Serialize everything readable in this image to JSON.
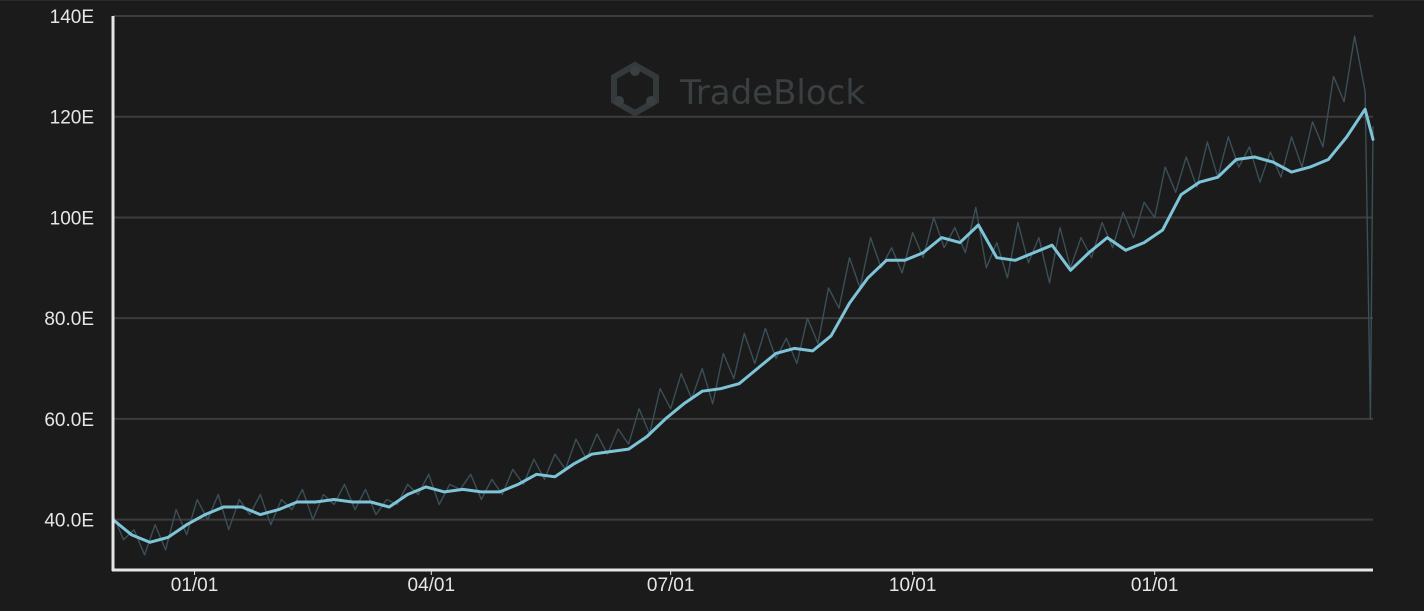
{
  "watermark": {
    "text": "TradeBlock",
    "icon": "hexagon-nodes-icon"
  },
  "colors": {
    "background": "#1b1b1b",
    "grid": "#3c3c3c",
    "axis": "#e6e6e6",
    "tick_text": "#e6e6e6",
    "smooth_line": "#7ec4d8",
    "raw_line": "#3a4f57",
    "watermark": "#3a3f42"
  },
  "chart_data": {
    "type": "line",
    "title": "",
    "xlabel": "",
    "ylabel": "",
    "x_range": [
      "2020-12-01",
      "2022-03-25"
    ],
    "ylim": [
      30,
      140
    ],
    "grid": "horizontal",
    "yticks": [
      {
        "value": 40,
        "label": "40.0E"
      },
      {
        "value": 60,
        "label": "60.0E"
      },
      {
        "value": 80,
        "label": "80.0E"
      },
      {
        "value": 100,
        "label": "100E"
      },
      {
        "value": 120,
        "label": "120E"
      },
      {
        "value": 140,
        "label": "140E"
      }
    ],
    "xticks": [
      {
        "date": "2021-01-01",
        "label": "01/01"
      },
      {
        "date": "2021-04-01",
        "label": "04/01"
      },
      {
        "date": "2021-07-01",
        "label": "07/01"
      },
      {
        "date": "2021-10-01",
        "label": "10/01"
      },
      {
        "date": "2022-01-01",
        "label": "01/01"
      }
    ],
    "series": [
      {
        "style": "smoothed",
        "x": [
          "2020-12-01",
          "2020-12-08",
          "2020-12-15",
          "2020-12-22",
          "2020-12-29",
          "2021-01-05",
          "2021-01-12",
          "2021-01-19",
          "2021-01-26",
          "2021-02-02",
          "2021-02-09",
          "2021-02-16",
          "2021-02-23",
          "2021-03-02",
          "2021-03-09",
          "2021-03-16",
          "2021-03-23",
          "2021-03-30",
          "2021-04-06",
          "2021-04-13",
          "2021-04-20",
          "2021-04-27",
          "2021-05-04",
          "2021-05-11",
          "2021-05-18",
          "2021-05-25",
          "2021-06-01",
          "2021-06-08",
          "2021-06-15",
          "2021-06-22",
          "2021-06-29",
          "2021-07-06",
          "2021-07-13",
          "2021-07-20",
          "2021-07-27",
          "2021-08-03",
          "2021-08-10",
          "2021-08-17",
          "2021-08-24",
          "2021-08-31",
          "2021-09-07",
          "2021-09-14",
          "2021-09-21",
          "2021-09-28",
          "2021-10-05",
          "2021-10-12",
          "2021-10-19",
          "2021-10-26",
          "2021-11-02",
          "2021-11-09",
          "2021-11-16",
          "2021-11-23",
          "2021-11-30",
          "2021-12-07",
          "2021-12-14",
          "2021-12-21",
          "2021-12-28",
          "2022-01-04",
          "2022-01-11",
          "2022-01-18",
          "2022-01-25",
          "2022-02-01",
          "2022-02-08",
          "2022-02-15",
          "2022-02-22",
          "2022-03-01",
          "2022-03-08",
          "2022-03-15",
          "2022-03-22",
          "2022-03-25"
        ],
        "values": [
          40,
          37,
          35.5,
          36.5,
          39,
          41,
          42.5,
          42.5,
          41,
          42,
          43.5,
          43.5,
          44,
          43.5,
          43.5,
          42.5,
          45,
          46.5,
          45.5,
          46,
          45.5,
          45.5,
          47,
          49,
          48.5,
          51,
          53,
          53.5,
          54,
          56.5,
          60,
          63,
          65.5,
          66,
          67,
          70,
          73,
          74,
          73.5,
          76.5,
          83,
          88,
          91.5,
          91.5,
          93,
          96,
          95,
          98.5,
          92,
          91.5,
          93,
          94.5,
          89.5,
          93,
          96,
          93.5,
          95,
          97.5,
          104.5,
          107,
          108,
          111.5,
          112,
          111,
          109,
          110,
          111.5,
          116,
          121.5,
          115.5
        ]
      },
      {
        "style": "raw",
        "x": [
          "2020-12-01",
          "2020-12-05",
          "2020-12-09",
          "2020-12-13",
          "2020-12-17",
          "2020-12-21",
          "2020-12-25",
          "2020-12-29",
          "2021-01-02",
          "2021-01-06",
          "2021-01-10",
          "2021-01-14",
          "2021-01-18",
          "2021-01-22",
          "2021-01-26",
          "2021-01-30",
          "2021-02-03",
          "2021-02-07",
          "2021-02-11",
          "2021-02-15",
          "2021-02-19",
          "2021-02-23",
          "2021-02-27",
          "2021-03-03",
          "2021-03-07",
          "2021-03-11",
          "2021-03-15",
          "2021-03-19",
          "2021-03-23",
          "2021-03-27",
          "2021-03-31",
          "2021-04-04",
          "2021-04-08",
          "2021-04-12",
          "2021-04-16",
          "2021-04-20",
          "2021-04-24",
          "2021-04-28",
          "2021-05-02",
          "2021-05-06",
          "2021-05-10",
          "2021-05-14",
          "2021-05-18",
          "2021-05-22",
          "2021-05-26",
          "2021-05-30",
          "2021-06-03",
          "2021-06-07",
          "2021-06-11",
          "2021-06-15",
          "2021-06-19",
          "2021-06-23",
          "2021-06-27",
          "2021-07-01",
          "2021-07-05",
          "2021-07-09",
          "2021-07-13",
          "2021-07-17",
          "2021-07-21",
          "2021-07-25",
          "2021-07-29",
          "2021-08-02",
          "2021-08-06",
          "2021-08-10",
          "2021-08-14",
          "2021-08-18",
          "2021-08-22",
          "2021-08-26",
          "2021-08-30",
          "2021-09-03",
          "2021-09-07",
          "2021-09-11",
          "2021-09-15",
          "2021-09-19",
          "2021-09-23",
          "2021-09-27",
          "2021-10-01",
          "2021-10-05",
          "2021-10-09",
          "2021-10-13",
          "2021-10-17",
          "2021-10-21",
          "2021-10-25",
          "2021-10-29",
          "2021-11-02",
          "2021-11-06",
          "2021-11-10",
          "2021-11-14",
          "2021-11-18",
          "2021-11-22",
          "2021-11-26",
          "2021-11-30",
          "2021-12-04",
          "2021-12-08",
          "2021-12-12",
          "2021-12-16",
          "2021-12-20",
          "2021-12-24",
          "2021-12-28",
          "2022-01-01",
          "2022-01-05",
          "2022-01-09",
          "2022-01-13",
          "2022-01-17",
          "2022-01-21",
          "2022-01-25",
          "2022-01-29",
          "2022-02-02",
          "2022-02-06",
          "2022-02-10",
          "2022-02-14",
          "2022-02-18",
          "2022-02-22",
          "2022-02-26",
          "2022-03-02",
          "2022-03-06",
          "2022-03-10",
          "2022-03-14",
          "2022-03-18",
          "2022-03-22",
          "2022-03-24",
          "2022-03-25"
        ],
        "values": [
          41,
          36,
          38,
          33,
          39,
          34,
          42,
          37,
          44,
          40,
          45,
          38,
          44,
          41,
          45,
          39,
          44,
          42,
          46,
          40,
          45,
          43,
          47,
          42,
          46,
          41,
          44,
          43,
          47,
          45,
          49,
          43,
          47,
          46,
          49,
          44,
          48,
          45,
          50,
          47,
          52,
          48,
          53,
          50,
          56,
          52,
          57,
          53,
          58,
          55,
          62,
          57,
          66,
          62,
          69,
          64,
          70,
          63,
          73,
          68,
          77,
          71,
          78,
          72,
          76,
          71,
          80,
          75,
          86,
          82,
          92,
          86,
          96,
          90,
          94,
          89,
          97,
          92,
          100,
          94,
          98,
          93,
          102,
          90,
          95,
          88,
          99,
          91,
          96,
          87,
          98,
          90,
          96,
          92,
          99,
          94,
          101,
          96,
          103,
          100,
          110,
          105,
          112,
          106,
          115,
          108,
          116,
          110,
          114,
          107,
          113,
          108,
          116,
          110,
          119,
          114,
          128,
          123,
          136,
          125,
          60,
          118
        ]
      }
    ]
  }
}
